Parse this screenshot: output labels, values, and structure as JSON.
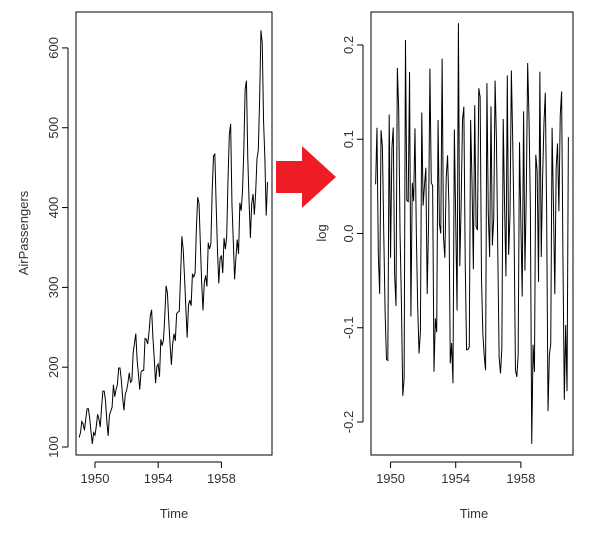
{
  "arrow": {
    "color": "#ee1c24",
    "icon": "arrow-right-icon"
  },
  "chart_data": [
    {
      "type": "line",
      "xlabel": "Time",
      "ylabel": "AirPassengers",
      "xlim": [
        1948.8,
        1961.2
      ],
      "ylim": [
        90,
        645
      ],
      "xticks": [
        1950,
        1954,
        1958
      ],
      "yticks": [
        100,
        200,
        300,
        400,
        500,
        600
      ],
      "x_start": 1949.0,
      "x_step": 0.0833333,
      "values": [
        112,
        118,
        132,
        129,
        121,
        135,
        148,
        148,
        136,
        119,
        104,
        118,
        115,
        126,
        141,
        135,
        125,
        149,
        170,
        170,
        158,
        133,
        114,
        140,
        145,
        150,
        178,
        163,
        172,
        178,
        199,
        199,
        184,
        162,
        146,
        166,
        171,
        180,
        193,
        181,
        183,
        218,
        230,
        242,
        209,
        191,
        172,
        194,
        196,
        196,
        236,
        235,
        229,
        243,
        264,
        272,
        237,
        211,
        180,
        201,
        204,
        188,
        235,
        227,
        234,
        264,
        302,
        293,
        259,
        229,
        203,
        229,
        242,
        233,
        267,
        269,
        270,
        315,
        364,
        347,
        312,
        274,
        237,
        278,
        284,
        277,
        317,
        313,
        318,
        374,
        413,
        405,
        355,
        306,
        271,
        306,
        315,
        301,
        356,
        348,
        355,
        422,
        465,
        467,
        404,
        347,
        305,
        336,
        340,
        318,
        362,
        348,
        363,
        435,
        491,
        505,
        404,
        359,
        310,
        337,
        360,
        342,
        406,
        396,
        420,
        472,
        548,
        559,
        463,
        407,
        362,
        405,
        417,
        391,
        419,
        461,
        472,
        535,
        622,
        606,
        508,
        461,
        390,
        432
      ]
    },
    {
      "type": "line",
      "xlabel": "Time",
      "ylabel": "log",
      "xlim": [
        1948.8,
        1961.2
      ],
      "ylim": [
        -0.235,
        0.235
      ],
      "xticks": [
        1950,
        1954,
        1958
      ],
      "yticks": [
        -0.2,
        -0.1,
        0.0,
        0.1,
        0.2
      ],
      "x_start": 1949.0833,
      "x_step": 0.0833333
    }
  ]
}
